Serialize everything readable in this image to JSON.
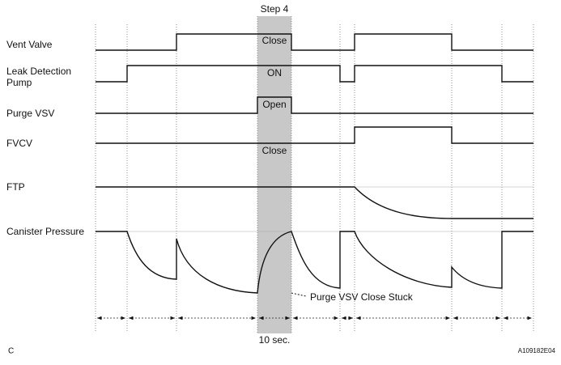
{
  "step": "Step 4",
  "signals": [
    {
      "lines": [
        "Vent Valve"
      ]
    },
    {
      "lines": [
        "Leak Detection",
        "Pump"
      ]
    },
    {
      "lines": [
        "Purge VSV"
      ]
    },
    {
      "lines": [
        "FVCV"
      ]
    },
    {
      "lines": [
        "FTP"
      ]
    },
    {
      "lines": [
        "Canister Pressure"
      ]
    }
  ],
  "states": [
    "Close",
    "ON",
    "Open",
    "Close"
  ],
  "annotation": "Purge VSV Close Stuck",
  "duration": "10 sec.",
  "corner_code": "C",
  "figure_id": "A109182E04"
}
